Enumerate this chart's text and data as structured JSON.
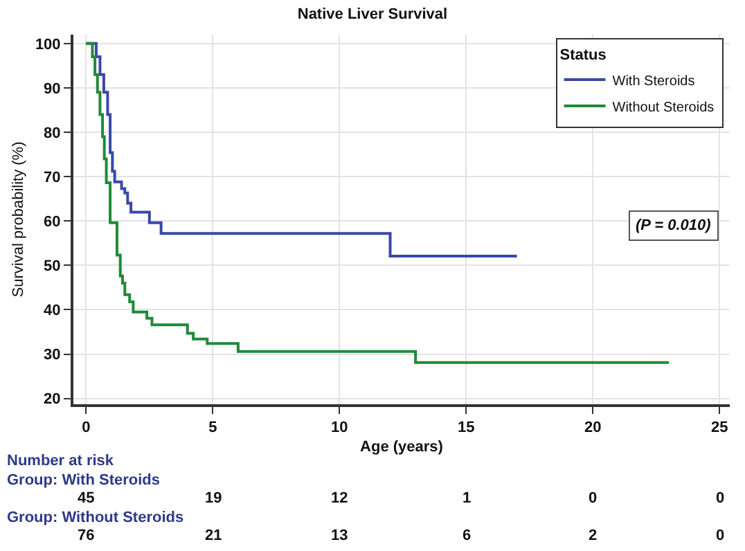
{
  "chart_data": {
    "type": "step",
    "title": "Native Liver Survival",
    "xlabel": "Age (years)",
    "ylabel": "Survival probability (%)",
    "legend_title": "Status",
    "series": [
      {
        "name": "With Steroids",
        "color": "#3a48a8",
        "x": [
          0,
          0.4,
          0.55,
          0.7,
          0.85,
          0.95,
          1.04,
          1.13,
          1.4,
          1.53,
          1.64,
          1.77,
          2.5,
          2.96,
          12,
          17
        ],
        "values": [
          100,
          97,
          93,
          89,
          84,
          75.4,
          71.2,
          68.8,
          67.3,
          66.3,
          64,
          62,
          59.6,
          57.2,
          52.1,
          52.1
        ]
      },
      {
        "name": "Without Steroids",
        "color": "#1f8a3a",
        "x": [
          0,
          0.25,
          0.35,
          0.45,
          0.55,
          0.65,
          0.72,
          0.8,
          0.95,
          1.22,
          1.35,
          1.44,
          1.53,
          1.72,
          1.86,
          2.4,
          2.6,
          4.0,
          4.23,
          4.78,
          6.0,
          13,
          23
        ],
        "values": [
          100,
          97,
          93,
          89,
          84,
          79,
          74,
          68.6,
          59.6,
          52.3,
          47.6,
          46,
          43.4,
          41.8,
          39.5,
          38.1,
          36.6,
          34.7,
          33.4,
          32.4,
          30.6,
          28.1,
          28.1
        ]
      }
    ],
    "xlim": [
      -0.5,
      25.4
    ],
    "ylim": [
      18.7,
      102
    ],
    "xticks": [
      0,
      5,
      10,
      15,
      20,
      25
    ],
    "yticks": [
      20,
      30,
      40,
      50,
      60,
      70,
      80,
      90,
      100
    ],
    "grid": true,
    "legend": "top right",
    "line_style": "solid",
    "marker": "none",
    "annotations": [
      "(P = 0.010)",
      "Number at risk",
      "Group: With Steroids",
      "45",
      "19",
      "12",
      "1",
      "0",
      "0",
      "Group: Without Steroids",
      "76",
      "21",
      "13",
      "6",
      "2",
      "0"
    ]
  }
}
